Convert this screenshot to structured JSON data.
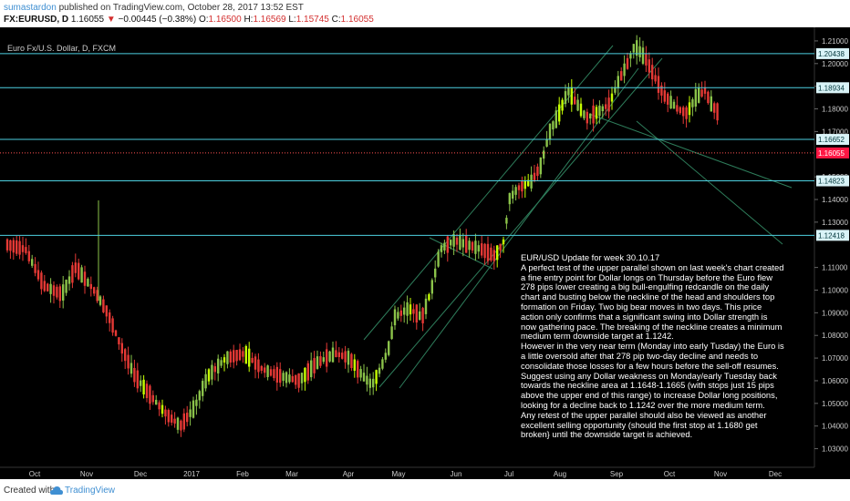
{
  "header": {
    "user": "sumastardon",
    "published": "published on TradingView.com, October 28, 2017 13:52 EST",
    "symbol": "FX:EURUSD, D",
    "last": "1.16055",
    "change_arrow": "▼",
    "change": "−0.00445 (−0.38%)",
    "open_label": "O:",
    "open": "1.16500",
    "high_label": "H:",
    "high": "1.16569",
    "low_label": "L:",
    "low": "1.15745",
    "close_label": "C:",
    "close": "1.16055"
  },
  "chart_title": "Euro Fx/U.S. Dollar, D, FXCM",
  "annotation": [
    "EUR/USD     Update for week 30.10.17",
    "A perfect test of the upper parallel shown on last week's chart created a fine entry point for Dollar longs on Thursday before the Euro flew 278 pips lower creating a big bull-engulfing redcandle on the daily chart and busting below the neckline of the head and shoulders top formation on Friday. Two big bear moves in two days. This price action only confirms that a significant swing into Dollar strength is now gathering pace. The breaking of the neckline creates a minimum medium term downside target at 1.1242.",
    "However in the very near term (Monday into early Tusday) the Euro is a little oversold after that 278 pip two-day decline and needs to consolidate those losses for a few hours before the sell-off resumes.",
    "Suggest using any Dollar weakness on Monday/early Tuesday back towards the neckline area at 1.1648-1.1665 (with stops just 15 pips above the upper end of this range) to increase Dollar long positions, looking for a decline back to 1.1242 over the more medium term.",
    "Any retest of the upper parallel should also be viewed as another excellent selling opportunity (should the first stop at 1.1680 get broken} until the downside target is achieved."
  ],
  "footer": {
    "created_with": "Created with",
    "brand": "TradingView"
  },
  "colors": {
    "background": "#000000",
    "bull": "#8bc34a",
    "bull_bright": "#c6ff00",
    "bear": "#e53935",
    "hline": "#4dd0e1",
    "channel": "#2e7d5b",
    "axis_text": "#cccccc",
    "price_badge_bg": "#d9f3f7",
    "current_badge_bg": "#ff1744"
  },
  "chart_data": {
    "type": "candlestick",
    "symbol": "EURUSD",
    "timeframe": "D",
    "x_labels": [
      "Oct",
      "Nov",
      "Dec",
      "2017",
      "Feb",
      "Mar",
      "Apr",
      "May",
      "Jun",
      "Jul",
      "Aug",
      "Sep",
      "Oct",
      "Nov",
      "Dec"
    ],
    "y_ticks": [
      "1.21000",
      "1.20000",
      "1.19000",
      "1.18000",
      "1.17000",
      "1.15000",
      "1.14000",
      "1.13000",
      "1.11000",
      "1.10000",
      "1.09000",
      "1.08000",
      "1.07000",
      "1.06000",
      "1.05000",
      "1.04000",
      "1.03000"
    ],
    "ylim": [
      1.025,
      1.216
    ],
    "horizontal_levels": [
      "1.20438",
      "1.18934",
      "1.16652",
      "1.14823",
      "1.12418"
    ],
    "current_price": "1.16055",
    "price_path": [
      [
        0,
        1.12
      ],
      [
        20,
        1.118
      ],
      [
        40,
        1.102
      ],
      [
        60,
        1.098
      ],
      [
        75,
        1.11
      ],
      [
        95,
        1.1
      ],
      [
        110,
        1.09
      ],
      [
        125,
        1.075
      ],
      [
        140,
        1.062
      ],
      [
        160,
        1.052
      ],
      [
        175,
        1.045
      ],
      [
        190,
        1.04
      ],
      [
        205,
        1.048
      ],
      [
        220,
        1.062
      ],
      [
        240,
        1.07
      ],
      [
        260,
        1.072
      ],
      [
        280,
        1.065
      ],
      [
        300,
        1.062
      ],
      [
        320,
        1.06
      ],
      [
        340,
        1.068
      ],
      [
        360,
        1.072
      ],
      [
        375,
        1.07
      ],
      [
        390,
        1.062
      ],
      [
        400,
        1.058
      ],
      [
        410,
        1.066
      ],
      [
        418,
        1.074
      ],
      [
        425,
        1.088
      ],
      [
        440,
        1.092
      ],
      [
        455,
        1.088
      ],
      [
        465,
        1.1
      ],
      [
        475,
        1.118
      ],
      [
        490,
        1.122
      ],
      [
        505,
        1.12
      ],
      [
        520,
        1.118
      ],
      [
        535,
        1.115
      ],
      [
        545,
        1.122
      ],
      [
        550,
        1.14
      ],
      [
        560,
        1.145
      ],
      [
        575,
        1.148
      ],
      [
        585,
        1.155
      ],
      [
        595,
        1.17
      ],
      [
        605,
        1.178
      ],
      [
        615,
        1.188
      ],
      [
        625,
        1.182
      ],
      [
        635,
        1.176
      ],
      [
        645,
        1.178
      ],
      [
        660,
        1.182
      ],
      [
        670,
        1.192
      ],
      [
        680,
        1.2
      ],
      [
        688,
        1.208
      ],
      [
        700,
        1.202
      ],
      [
        710,
        1.194
      ],
      [
        720,
        1.186
      ],
      [
        735,
        1.18
      ],
      [
        745,
        1.178
      ],
      [
        755,
        1.185
      ],
      [
        765,
        1.188
      ],
      [
        772,
        1.182
      ],
      [
        780,
        1.178
      ],
      [
        786,
        1.166
      ],
      [
        790,
        1.16
      ]
    ]
  }
}
